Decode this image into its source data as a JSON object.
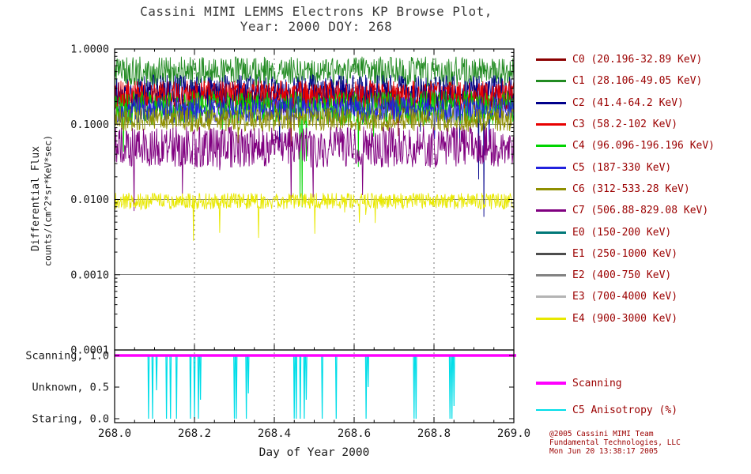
{
  "title": {
    "line1": "Cassini MIMI LEMMS Electrons KP Browse Plot,",
    "line2": "Year: 2000 DOY: 268"
  },
  "axes": {
    "x_label": "Day of Year 2000",
    "y_label_line1": "Differential Flux",
    "y_label_line2": "counts/(cm^2*sr*KeV*sec)",
    "x_ticks": [
      "268.0",
      "268.2",
      "268.4",
      "268.6",
      "268.8",
      "269.0"
    ],
    "y_ticks": [
      "1.0000",
      "0.1000",
      "0.0100",
      "0.0010",
      "0.0001"
    ],
    "status_ticks": [
      "Scanning, 1.0",
      "Unknown, 0.5",
      "Staring, 0.0"
    ]
  },
  "legend": {
    "items": [
      {
        "label": "C0 (20.196-32.89 KeV)",
        "color": "#8B0000"
      },
      {
        "label": "C1 (28.106-49.05 KeV)",
        "color": "#228B22"
      },
      {
        "label": "C2 (41.4-64.2 KeV)",
        "color": "#00008B"
      },
      {
        "label": "C3 (58.2-102 KeV)",
        "color": "#E80000"
      },
      {
        "label": "C4 (96.096-196.196 KeV)",
        "color": "#00D400"
      },
      {
        "label": "C5 (187-330 KeV)",
        "color": "#2222DD"
      },
      {
        "label": "C6 (312-533.28 KeV)",
        "color": "#8F8F00"
      },
      {
        "label": "C7 (506.88-829.08 KeV)",
        "color": "#800080"
      },
      {
        "label": "E0 (150-200 KeV)",
        "color": "#007878"
      },
      {
        "label": "E1 (250-1000 KeV)",
        "color": "#4D4D4D"
      },
      {
        "label": "E2 (400-750 KeV)",
        "color": "#828282"
      },
      {
        "label": "E3 (700-4000 KeV)",
        "color": "#B4B4B4"
      },
      {
        "label": "E4 (900-3000 KeV)",
        "color": "#E8E800"
      }
    ]
  },
  "legend2": {
    "items": [
      {
        "label": "Scanning",
        "color": "#FF00FF",
        "thick": true
      },
      {
        "label": "C5 Anisotropy (%)",
        "color": "#00DDE8",
        "thick": false
      }
    ]
  },
  "credit": {
    "line1": "@2005 Cassini MIMI Team",
    "line2": "Fundamental Technologies, LLC",
    "line3": "Mon Jun 20 13:38:17 2005"
  },
  "chart_data": {
    "type": "line",
    "title": "Cassini MIMI LEMMS Electrons KP Browse Plot, Year: 2000 DOY: 268",
    "xlabel": "Day of Year 2000",
    "ylabel": "Differential Flux counts/(cm^2*sr*KeV*sec)",
    "x_range": [
      268.0,
      269.0
    ],
    "y_scale": "log",
    "y_range": [
      0.0001,
      1.0
    ],
    "grid": {
      "x_dashed": [
        268.2,
        268.4,
        268.6,
        268.8
      ],
      "y_solid": [
        0.1,
        0.01,
        0.001
      ]
    },
    "legend_position": "right",
    "n_points": 760,
    "series": [
      {
        "id": "C0",
        "label": "C0 (20.196-32.89 KeV)",
        "color": "#8B0000",
        "level": 0.22,
        "jitter": 0.4,
        "spike_prob": 0.004,
        "spike_depth": 0.6
      },
      {
        "id": "C1",
        "label": "C1 (28.106-49.05 KeV)",
        "color": "#228B22",
        "level": 0.5,
        "jitter": 0.4,
        "spike_prob": 0.01,
        "spike_depth": 0.8
      },
      {
        "id": "C2",
        "label": "C2 (41.4-64.2 KeV)",
        "color": "#00008B",
        "level": 0.27,
        "jitter": 0.45,
        "spike_prob": 0.015,
        "spike_depth": 1.6
      },
      {
        "id": "C3",
        "label": "C3 (58.2-102 KeV)",
        "color": "#E80000",
        "level": 0.24,
        "jitter": 0.4,
        "spike_prob": 0.005,
        "spike_depth": 0.6
      },
      {
        "id": "C4",
        "label": "C4 (96.096-196.196 KeV)",
        "color": "#00D400",
        "level": 0.165,
        "jitter": 0.45,
        "spike_prob": 0.01,
        "spike_depth": 1.2
      },
      {
        "id": "C5",
        "label": "C5 (187-330 KeV)",
        "color": "#2222DD",
        "level": 0.155,
        "jitter": 0.35,
        "spike_prob": 0.005,
        "spike_depth": 0.7
      },
      {
        "id": "C6",
        "label": "C6 (312-533.28 KeV)",
        "color": "#8F8F00",
        "level": 0.115,
        "jitter": 0.32,
        "spike_prob": 0.004,
        "spike_depth": 0.5
      },
      {
        "id": "C7",
        "label": "C7 (506.88-829.08 KeV)",
        "color": "#800080",
        "level": 0.05,
        "jitter": 0.55,
        "spike_prob": 0.015,
        "spike_depth": 1.0
      },
      {
        "id": "E0",
        "label": "E0 (150-200 KeV)",
        "color": "#007878",
        "level": null,
        "jitter": 0
      },
      {
        "id": "E1",
        "label": "E1 (250-1000 KeV)",
        "color": "#4D4D4D",
        "level": null,
        "jitter": 0
      },
      {
        "id": "E2",
        "label": "E2 (400-750 KeV)",
        "color": "#828282",
        "level": null,
        "jitter": 0
      },
      {
        "id": "E3",
        "label": "E3 (700-4000 KeV)",
        "color": "#B4B4B4",
        "level": null,
        "jitter": 0
      },
      {
        "id": "E4",
        "label": "E4 (900-3000 KeV)",
        "color": "#E8E800",
        "level": 0.0095,
        "jitter": 0.22,
        "spike_prob": 0.008,
        "spike_depth": 0.5
      }
    ],
    "status_panel": {
      "y_ticks": [
        1.0,
        0.5,
        0.0
      ],
      "y_tick_labels": [
        "Scanning, 1.0",
        "Unknown, 0.5",
        "Staring, 0.0"
      ],
      "scanning_value": 1.0,
      "scanning_color": "#FF00FF",
      "anisotropy_color": "#00DDE8",
      "anisotropy_baseline": 1.0,
      "spikes": [
        {
          "x": 268.085,
          "v": 0.0
        },
        {
          "x": 268.095,
          "v": 0.0
        },
        {
          "x": 268.105,
          "v": 0.45
        },
        {
          "x": 268.13,
          "v": 0.0
        },
        {
          "x": 268.14,
          "v": 0.0
        },
        {
          "x": 268.155,
          "v": 0.0
        },
        {
          "x": 268.19,
          "v": 0.0
        },
        {
          "x": 268.2,
          "v": 0.0
        },
        {
          "x": 268.21,
          "v": 0.0
        },
        {
          "x": 268.215,
          "v": 0.3
        },
        {
          "x": 268.3,
          "v": 0.0
        },
        {
          "x": 268.305,
          "v": 0.0
        },
        {
          "x": 268.33,
          "v": 0.0
        },
        {
          "x": 268.335,
          "v": 0.4
        },
        {
          "x": 268.45,
          "v": 0.0
        },
        {
          "x": 268.455,
          "v": 0.0
        },
        {
          "x": 268.465,
          "v": 0.0
        },
        {
          "x": 268.475,
          "v": 0.0
        },
        {
          "x": 268.48,
          "v": 0.3
        },
        {
          "x": 268.52,
          "v": 0.0
        },
        {
          "x": 268.555,
          "v": 0.0
        },
        {
          "x": 268.63,
          "v": 0.0
        },
        {
          "x": 268.635,
          "v": 0.5
        },
        {
          "x": 268.75,
          "v": 0.0
        },
        {
          "x": 268.755,
          "v": 0.0
        },
        {
          "x": 268.84,
          "v": 0.0
        },
        {
          "x": 268.845,
          "v": 0.0
        },
        {
          "x": 268.85,
          "v": 0.2
        }
      ]
    }
  }
}
